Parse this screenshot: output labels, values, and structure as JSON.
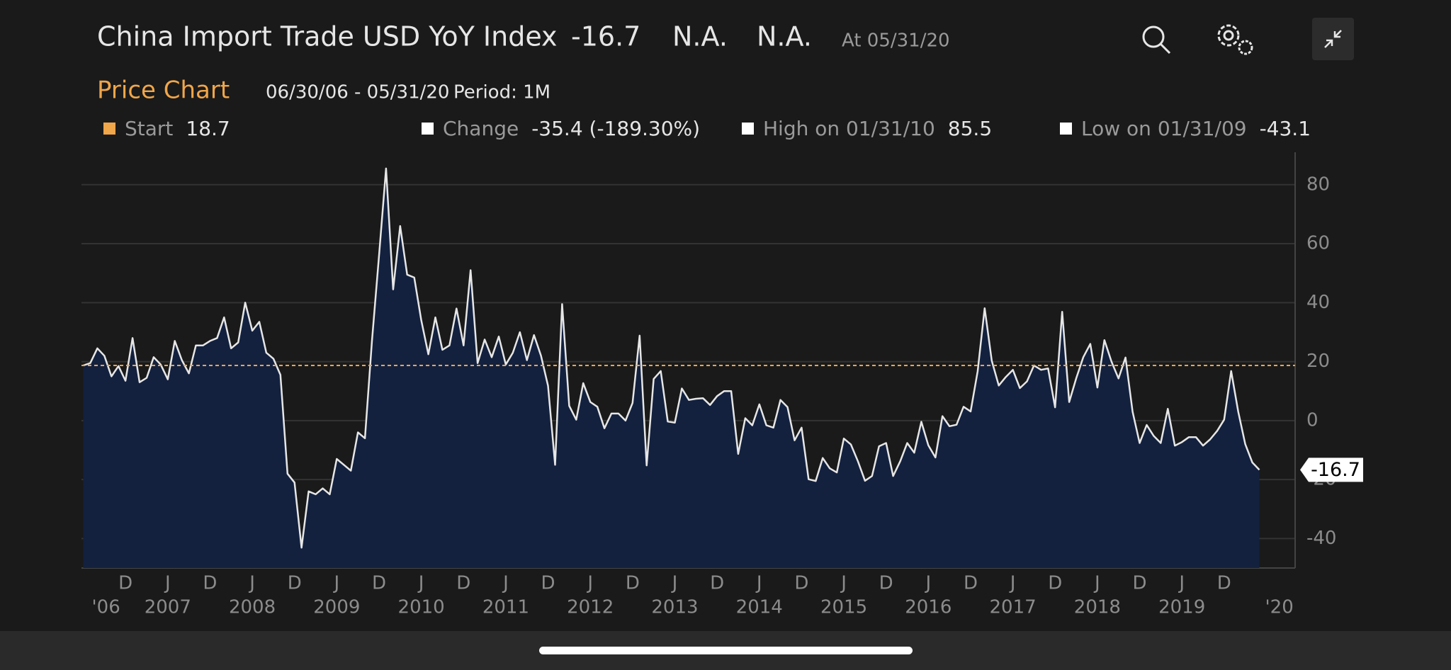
{
  "header": {
    "title": "China Import Trade USD YoY Index",
    "last": "-16.7",
    "bid": "N.A.",
    "ask": "N.A.",
    "asof": "At 05/31/20"
  },
  "subheader": {
    "title": "Price Chart",
    "range": "06/30/06 - 05/31/20",
    "period": "Period: 1M"
  },
  "legend": [
    {
      "label": "Start",
      "value": 18.7
    },
    {
      "label": "Change",
      "value": "-35.4 (-189.30%)"
    },
    {
      "label": "High on 01/31/10",
      "value": 85.5
    },
    {
      "label": "Low on 01/31/09",
      "value": -43.1
    }
  ],
  "chart_data": {
    "type": "area",
    "color": "#13213f",
    "line_color": "#e6e6e6",
    "reference_color": "#f0a64a",
    "categories": [
      "2006-06",
      "2006-07",
      "2006-08",
      "2006-09",
      "2006-10",
      "2006-11",
      "2006-12",
      "2007-01",
      "2007-02",
      "2007-03",
      "2007-04",
      "2007-05",
      "2007-06",
      "2007-07",
      "2007-08",
      "2007-09",
      "2007-10",
      "2007-11",
      "2007-12",
      "2008-01",
      "2008-02",
      "2008-03",
      "2008-04",
      "2008-05",
      "2008-06",
      "2008-07",
      "2008-08",
      "2008-09",
      "2008-10",
      "2008-11",
      "2008-12",
      "2009-01",
      "2009-02",
      "2009-03",
      "2009-04",
      "2009-05",
      "2009-06",
      "2009-07",
      "2009-08",
      "2009-09",
      "2009-10",
      "2009-11",
      "2009-12",
      "2010-01",
      "2010-02",
      "2010-03",
      "2010-04",
      "2010-05",
      "2010-06",
      "2010-07",
      "2010-08",
      "2010-09",
      "2010-10",
      "2010-11",
      "2010-12",
      "2011-01",
      "2011-02",
      "2011-03",
      "2011-04",
      "2011-05",
      "2011-06",
      "2011-07",
      "2011-08",
      "2011-09",
      "2011-10",
      "2011-11",
      "2011-12",
      "2012-01",
      "2012-02",
      "2012-03",
      "2012-04",
      "2012-05",
      "2012-06",
      "2012-07",
      "2012-08",
      "2012-09",
      "2012-10",
      "2012-11",
      "2012-12",
      "2013-01",
      "2013-02",
      "2013-03",
      "2013-04",
      "2013-05",
      "2013-06",
      "2013-07",
      "2013-08",
      "2013-09",
      "2013-10",
      "2013-11",
      "2013-12",
      "2014-01",
      "2014-02",
      "2014-03",
      "2014-04",
      "2014-05",
      "2014-06",
      "2014-07",
      "2014-08",
      "2014-09",
      "2014-10",
      "2014-11",
      "2014-12",
      "2015-01",
      "2015-02",
      "2015-03",
      "2015-04",
      "2015-05",
      "2015-06",
      "2015-07",
      "2015-08",
      "2015-09",
      "2015-10",
      "2015-11",
      "2015-12",
      "2016-01",
      "2016-02",
      "2016-03",
      "2016-04",
      "2016-05",
      "2016-06",
      "2016-07",
      "2016-08",
      "2016-09",
      "2016-10",
      "2016-11",
      "2016-12",
      "2017-01",
      "2017-02",
      "2017-03",
      "2017-04",
      "2017-05",
      "2017-06",
      "2017-07",
      "2017-08",
      "2017-09",
      "2017-10",
      "2017-11",
      "2017-12",
      "2018-01",
      "2018-02",
      "2018-03",
      "2018-04",
      "2018-05",
      "2018-06",
      "2018-07",
      "2018-08",
      "2018-09",
      "2018-10",
      "2018-11",
      "2018-12",
      "2019-01",
      "2019-02",
      "2019-03",
      "2019-04",
      "2019-05",
      "2019-06",
      "2019-07",
      "2019-08",
      "2019-09",
      "2019-10",
      "2019-11",
      "2019-12",
      "2020-01",
      "2020-02",
      "2020-03",
      "2020-04",
      "2020-05"
    ],
    "values": [
      18.7,
      19.5,
      24.5,
      22,
      15,
      18.5,
      13.5,
      28,
      13,
      14.5,
      21.5,
      19,
      14,
      27,
      20.5,
      16,
      25.5,
      25.5,
      27,
      28,
      35,
      24.5,
      26.5,
      40,
      30.5,
      33.5,
      23,
      21,
      15.5,
      -18,
      -21,
      -43.1,
      -24,
      -25,
      -23,
      -25,
      -13,
      -15,
      -17,
      -4,
      -6,
      27,
      56,
      85.5,
      44.5,
      66,
      49.5,
      48.5,
      34,
      22.5,
      35,
      24,
      25.5,
      38,
      25.5,
      51,
      19.5,
      27.5,
      21.5,
      28.5,
      19,
      23,
      30,
      20.5,
      29,
      22,
      11.8,
      -15,
      39.5,
      5,
      0.3,
      12.7,
      6.3,
      4.7,
      -2.6,
      2.4,
      2.4,
      0,
      6,
      28.8,
      -15.2,
      14.1,
      16.8,
      -0.3,
      -0.7,
      10.9,
      7,
      7.4,
      7.6,
      5.3,
      8.3,
      10,
      10,
      -11.3,
      0.8,
      -1.6,
      5.5,
      -1.6,
      -2.4,
      7,
      4.6,
      -6.7,
      -2.4,
      -19.9,
      -20.5,
      -12.7,
      -16.2,
      -17.6,
      -6.1,
      -8.1,
      -13.8,
      -20.4,
      -18.8,
      -8.7,
      -7.6,
      -18.8,
      -13.8,
      -7.6,
      -10.9,
      -0.4,
      -8.4,
      -12.5,
      1.5,
      -1.9,
      -1.4,
      4.7,
      3.1,
      16.7,
      38.1,
      20.3,
      11.9,
      14.8,
      17.2,
      11,
      13.3,
      18.7,
      17.2,
      17.7,
      4.5,
      36.9,
      6.3,
      14.4,
      21.5,
      26,
      11.2,
      27.3,
      20,
      14.3,
      21.4,
      3,
      -7.6,
      -1.5,
      -5.2,
      -7.6,
      4,
      -8.5,
      -7.3,
      -5.6,
      -5.6,
      -8.5,
      -6.4,
      -3.5,
      0.3,
      16.8,
      3,
      -8,
      -14.2,
      -16.7
    ],
    "ylim": [
      -50,
      91
    ],
    "yticks": [
      -40,
      -20,
      0,
      20,
      40,
      60,
      80
    ],
    "grid": true,
    "xticks": [
      {
        "value": "2006-12",
        "label": "D"
      },
      {
        "value": "2007-06",
        "label": "J"
      },
      {
        "value": "2007-12",
        "label": "D"
      },
      {
        "value": "2008-06",
        "label": "J"
      },
      {
        "value": "2008-12",
        "label": "D"
      },
      {
        "value": "2009-06",
        "label": "J"
      },
      {
        "value": "2009-12",
        "label": "D"
      },
      {
        "value": "2010-06",
        "label": "J"
      },
      {
        "value": "2010-12",
        "label": "D"
      },
      {
        "value": "2011-06",
        "label": "J"
      },
      {
        "value": "2011-12",
        "label": "D"
      },
      {
        "value": "2012-06",
        "label": "J"
      },
      {
        "value": "2012-12",
        "label": "D"
      },
      {
        "value": "2013-06",
        "label": "J"
      },
      {
        "value": "2013-12",
        "label": "D"
      },
      {
        "value": "2014-06",
        "label": "J"
      },
      {
        "value": "2014-12",
        "label": "D"
      },
      {
        "value": "2015-06",
        "label": "J"
      },
      {
        "value": "2015-12",
        "label": "D"
      },
      {
        "value": "2016-06",
        "label": "J"
      },
      {
        "value": "2016-12",
        "label": "D"
      },
      {
        "value": "2017-06",
        "label": "J"
      },
      {
        "value": "2017-12",
        "label": "D"
      },
      {
        "value": "2018-06",
        "label": "J"
      },
      {
        "value": "2018-12",
        "label": "D"
      },
      {
        "value": "2019-06",
        "label": "J"
      },
      {
        "value": "2019-12",
        "label": "D"
      }
    ],
    "xyears": [
      {
        "value": "2006-06",
        "label": "'06"
      },
      {
        "value": "2007-06",
        "label": "2007"
      },
      {
        "value": "2008-06",
        "label": "2008"
      },
      {
        "value": "2009-06",
        "label": "2009"
      },
      {
        "value": "2010-06",
        "label": "2010"
      },
      {
        "value": "2011-06",
        "label": "2011"
      },
      {
        "value": "2012-06",
        "label": "2012"
      },
      {
        "value": "2013-06",
        "label": "2013"
      },
      {
        "value": "2014-06",
        "label": "2014"
      },
      {
        "value": "2015-06",
        "label": "2015"
      },
      {
        "value": "2016-06",
        "label": "2016"
      },
      {
        "value": "2017-06",
        "label": "2017"
      },
      {
        "value": "2018-06",
        "label": "2018"
      },
      {
        "value": "2019-06",
        "label": "2019"
      },
      {
        "value": "2020-05",
        "label": "'20"
      }
    ]
  }
}
